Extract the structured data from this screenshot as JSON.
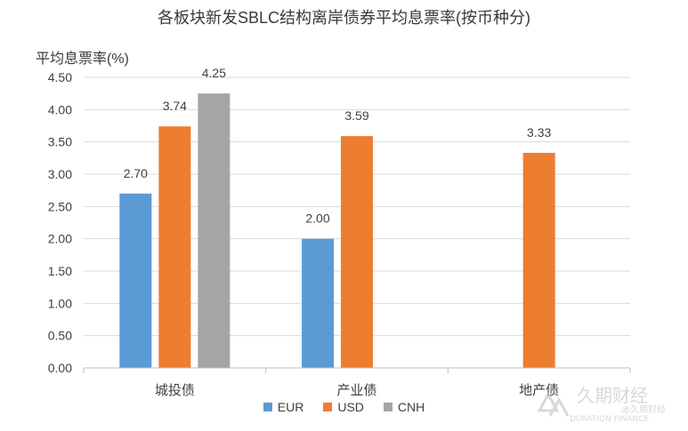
{
  "chart_data": {
    "type": "bar",
    "title": "各板块新发SBLC结构离岸债券平均息票率(按币种分)",
    "ylabel": "平均息票率(%)",
    "xlabel": "",
    "categories": [
      "城投债",
      "产业债",
      "地产债"
    ],
    "series": [
      {
        "name": "EUR",
        "color": "#5b9bd5",
        "values": [
          2.7,
          2.0,
          null
        ]
      },
      {
        "name": "USD",
        "color": "#ed7d31",
        "values": [
          3.74,
          3.59,
          3.33
        ]
      },
      {
        "name": "CNH",
        "color": "#a5a5a5",
        "values": [
          4.25,
          null,
          null
        ]
      }
    ],
    "ylim": [
      0,
      4.5
    ],
    "yticks": [
      "0.00",
      "0.50",
      "1.00",
      "1.50",
      "2.00",
      "2.50",
      "3.00",
      "3.50",
      "4.00",
      "4.50"
    ],
    "grid": true,
    "legend_position": "bottom"
  },
  "watermark": {
    "line1": "久期财经",
    "line2": "DURATION FINANCE",
    "line3": "@久期财经"
  }
}
